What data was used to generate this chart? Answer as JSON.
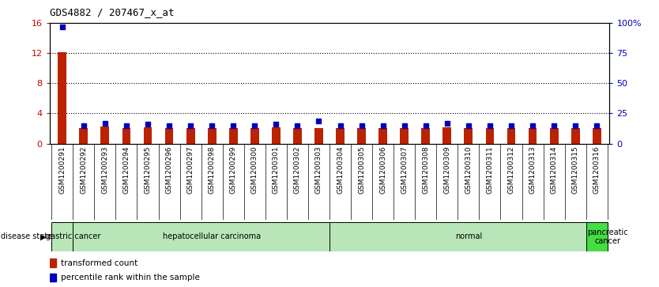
{
  "title": "GDS4882 / 207467_x_at",
  "samples": [
    "GSM1200291",
    "GSM1200292",
    "GSM1200293",
    "GSM1200294",
    "GSM1200295",
    "GSM1200296",
    "GSM1200297",
    "GSM1200298",
    "GSM1200299",
    "GSM1200300",
    "GSM1200301",
    "GSM1200302",
    "GSM1200303",
    "GSM1200304",
    "GSM1200305",
    "GSM1200306",
    "GSM1200307",
    "GSM1200308",
    "GSM1200309",
    "GSM1200310",
    "GSM1200311",
    "GSM1200312",
    "GSM1200313",
    "GSM1200314",
    "GSM1200315",
    "GSM1200316"
  ],
  "transformed_count": [
    12.1,
    2.0,
    2.3,
    2.0,
    2.2,
    2.0,
    2.0,
    2.0,
    2.0,
    2.0,
    2.1,
    2.0,
    2.0,
    2.0,
    2.0,
    2.0,
    2.0,
    2.0,
    2.1,
    2.0,
    2.0,
    2.0,
    2.0,
    2.0,
    2.0,
    2.0
  ],
  "percentile_rank": [
    97.0,
    15.0,
    17.0,
    15.0,
    16.0,
    15.0,
    15.0,
    15.0,
    15.0,
    15.0,
    16.0,
    15.0,
    19.0,
    15.0,
    15.0,
    15.0,
    15.0,
    15.0,
    17.0,
    15.0,
    15.0,
    15.0,
    15.0,
    15.0,
    15.0,
    15.0
  ],
  "disease_groups": [
    {
      "label": "gastric cancer",
      "start": 0,
      "end": 1
    },
    {
      "label": "hepatocellular carcinoma",
      "start": 1,
      "end": 13
    },
    {
      "label": "normal",
      "start": 13,
      "end": 25
    },
    {
      "label": "pancreatic\ncancer",
      "start": 25,
      "end": 26
    }
  ],
  "group_colors": [
    "#b8e6b8",
    "#b8e6b8",
    "#b8e6b8",
    "#44dd44"
  ],
  "ylim_left": [
    0,
    16
  ],
  "ylim_right": [
    0,
    100
  ],
  "yticks_left": [
    0,
    4,
    8,
    12,
    16
  ],
  "yticks_right": [
    0,
    25,
    50,
    75,
    100
  ],
  "ytick_labels_right": [
    "0",
    "25",
    "50",
    "75",
    "100%"
  ],
  "bar_color": "#bb2200",
  "dot_color": "#0000bb",
  "grid_color": "#000000",
  "bg_color": "#ffffff",
  "tick_color_left": "#cc0000",
  "tick_color_right": "#0000bb",
  "xticklabel_bg": "#cccccc",
  "bar_width": 0.4
}
